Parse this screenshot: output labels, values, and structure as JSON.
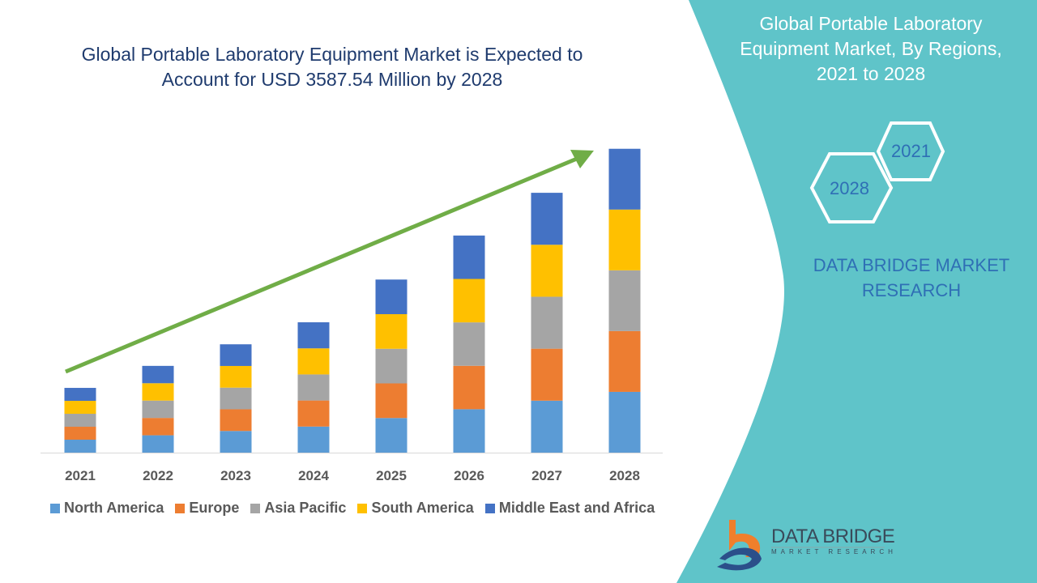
{
  "title": "Global Portable Laboratory Equipment Market is Expected to Account for USD 3587.54 Million by 2028",
  "side_title": "Global Portable Laboratory Equipment Market, By Regions, 2021 to 2028",
  "hex_labels": [
    "2021",
    "2028"
  ],
  "brand_text": "DATA BRIDGE MARKET RESEARCH",
  "logo": {
    "name": "DATA BRIDGE",
    "tagline": "MARKET RESEARCH"
  },
  "colors": {
    "panel": "#5fc4c9",
    "arrow": "#70ad47"
  },
  "chart_data": {
    "type": "bar",
    "stacked": true,
    "categories": [
      "2021",
      "2022",
      "2023",
      "2024",
      "2025",
      "2026",
      "2027",
      "2028"
    ],
    "series": [
      {
        "name": "North America",
        "color": "#5b9bd5",
        "values": [
          153,
          205,
          256,
          308,
          409,
          513,
          614,
          718
        ]
      },
      {
        "name": "Europe",
        "color": "#ed7d31",
        "values": [
          153,
          205,
          256,
          308,
          409,
          513,
          614,
          718
        ]
      },
      {
        "name": "Asia Pacific",
        "color": "#a5a5a5",
        "values": [
          153,
          205,
          256,
          308,
          409,
          513,
          614,
          718
        ]
      },
      {
        "name": "South America",
        "color": "#ffc000",
        "values": [
          153,
          205,
          256,
          308,
          409,
          513,
          614,
          718
        ]
      },
      {
        "name": "Middle East and Africa",
        "color": "#4472c4",
        "values": [
          153,
          205,
          256,
          308,
          409,
          513,
          614,
          718
        ]
      }
    ],
    "ylim": [
      0,
      3587.54
    ],
    "grid": false,
    "legend": "bottom",
    "trend_arrow": true
  }
}
